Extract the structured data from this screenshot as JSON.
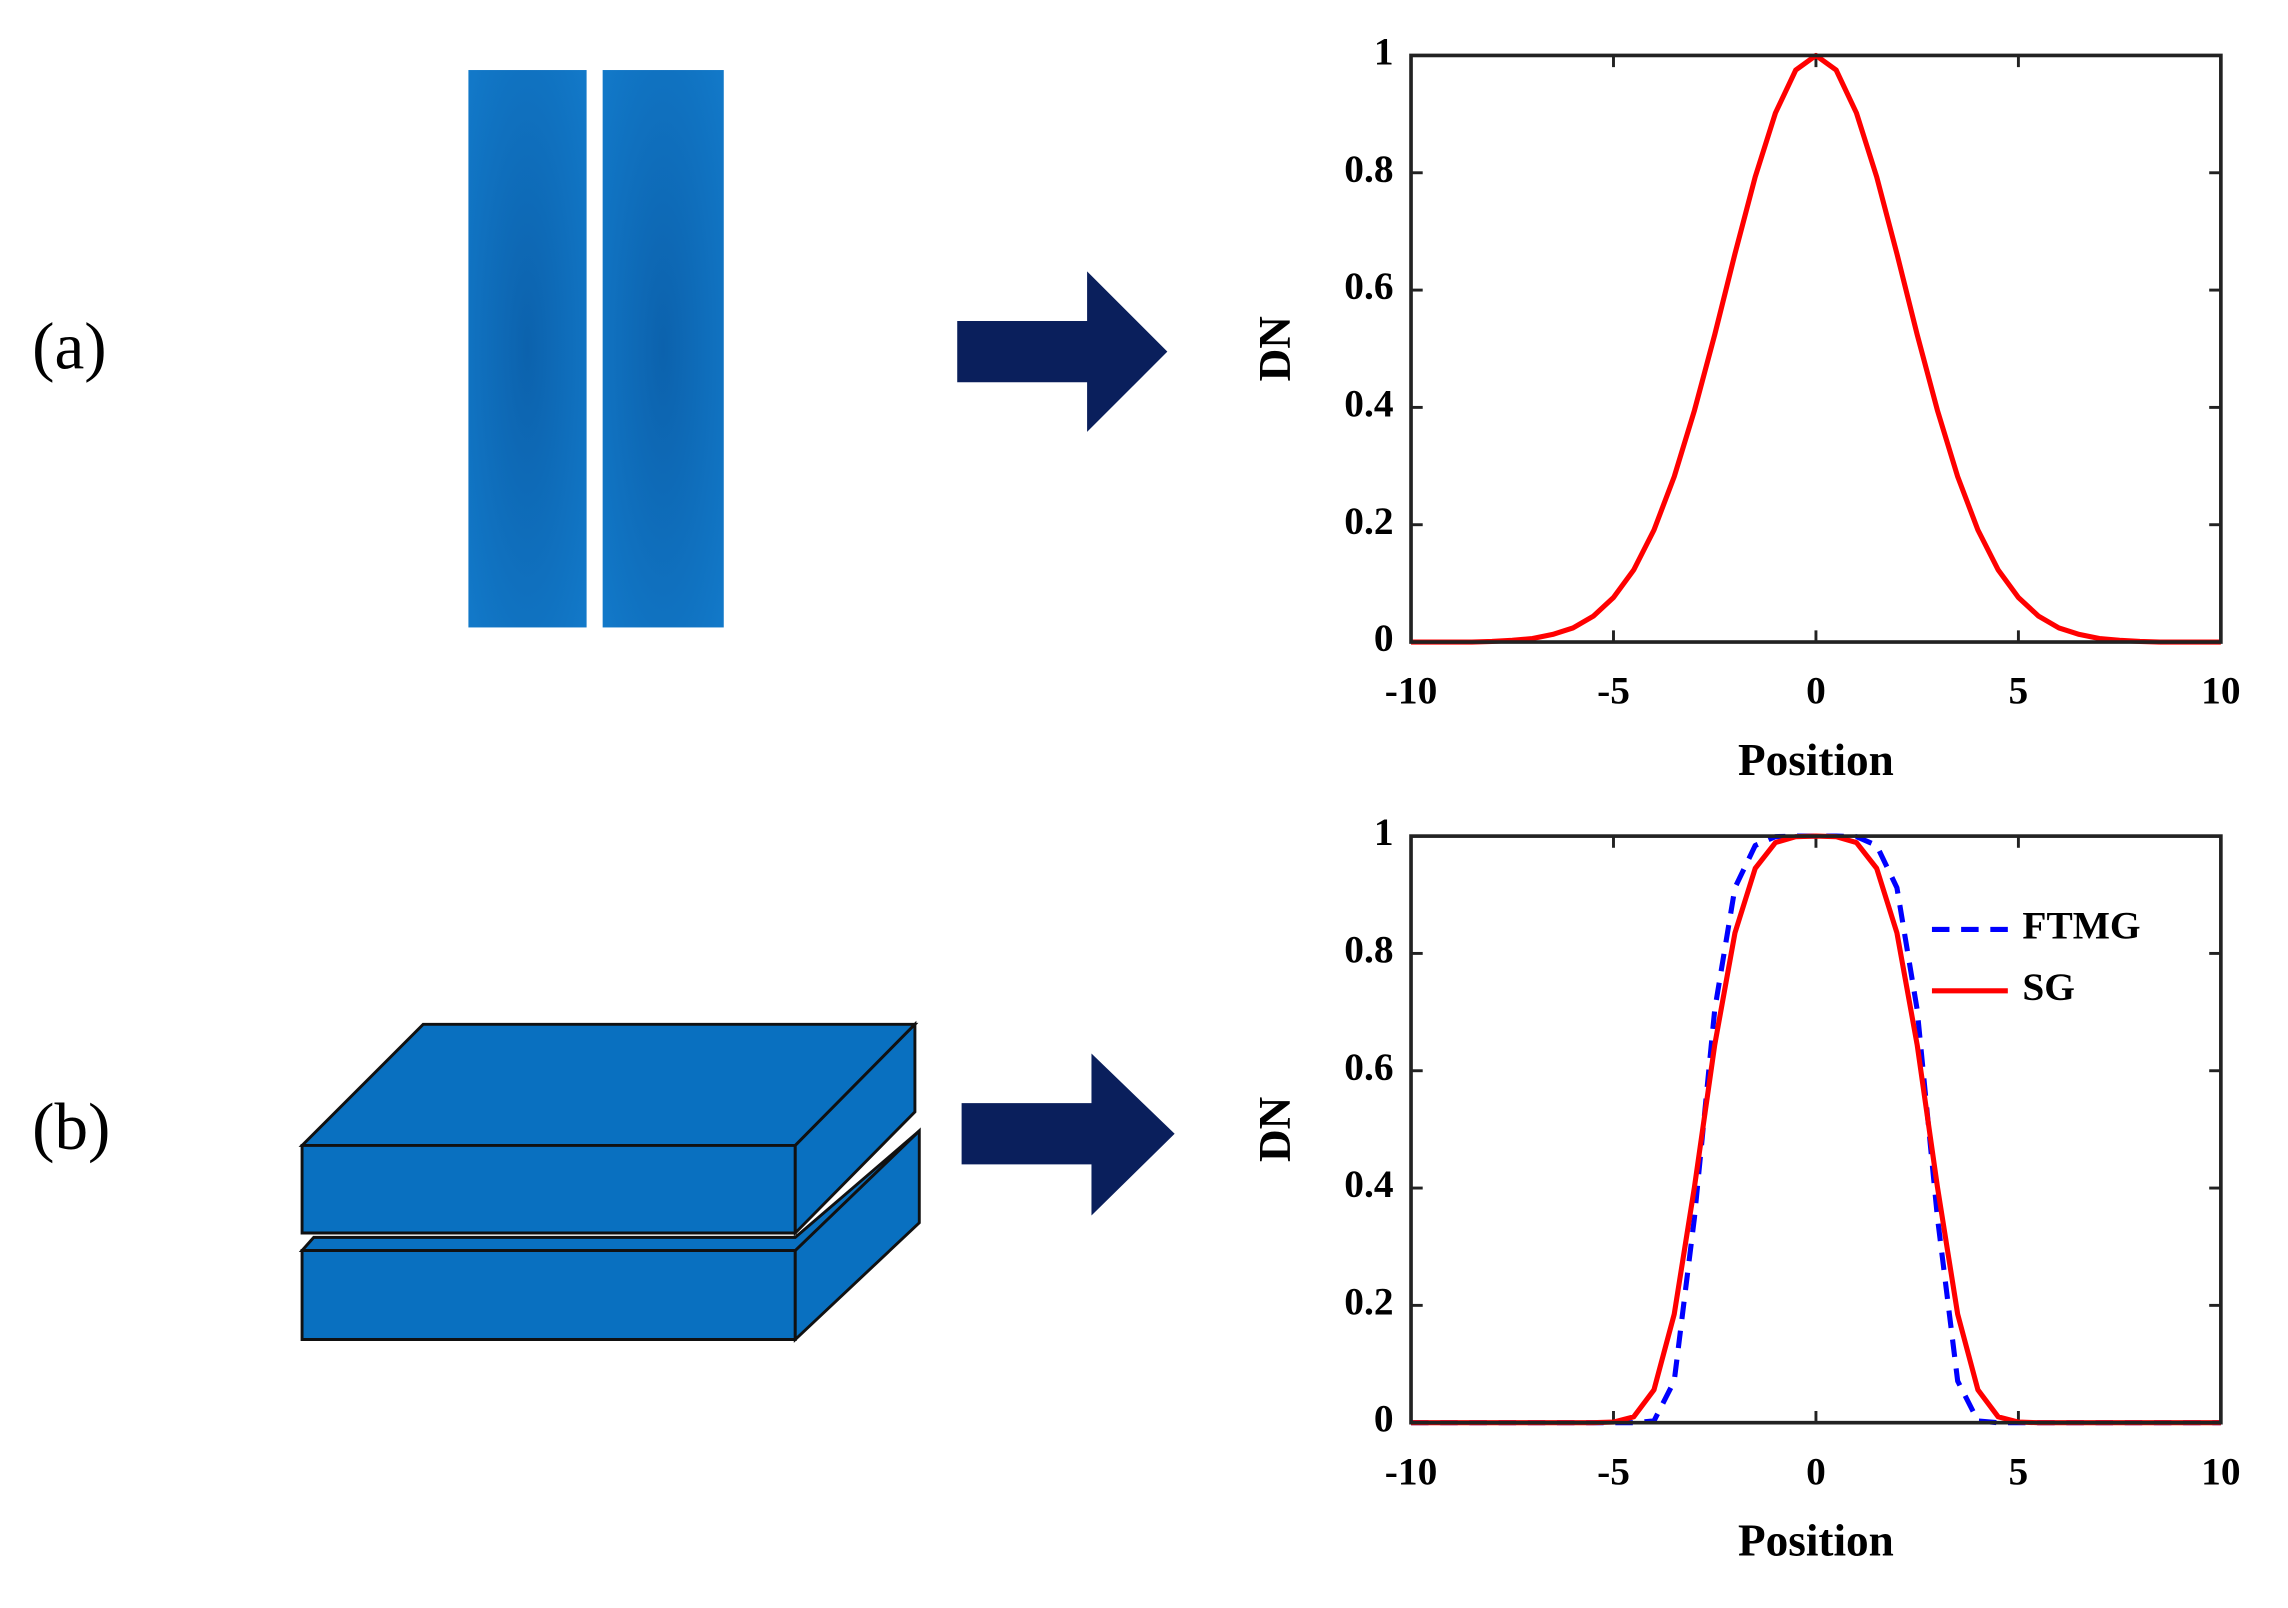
{
  "panel_labels": [
    "(a)",
    "(b)"
  ],
  "chart_data": [
    {
      "type": "line",
      "xlabel": "Position",
      "ylabel": "DN",
      "x": [
        -10,
        -9.5,
        -9,
        -8.5,
        -8,
        -7.5,
        -7,
        -6.5,
        -6,
        -5.5,
        -5,
        -4.5,
        -4,
        -3.5,
        -3,
        -2.5,
        -2,
        -1.5,
        -1,
        -0.5,
        0,
        0.5,
        1,
        1.5,
        2,
        2.5,
        3,
        3.5,
        4,
        4.5,
        5,
        5.5,
        6,
        6.5,
        7,
        7.5,
        8,
        8.5,
        9,
        9.5,
        10
      ],
      "series": [
        {
          "color": "#ff0000",
          "style": "solid",
          "values": [
            0,
            0,
            0,
            0,
            0.001,
            0.003,
            0.006,
            0.013,
            0.024,
            0.044,
            0.076,
            0.123,
            0.191,
            0.282,
            0.395,
            0.524,
            0.662,
            0.793,
            0.902,
            0.975,
            1,
            0.975,
            0.902,
            0.793,
            0.662,
            0.524,
            0.395,
            0.282,
            0.191,
            0.123,
            0.076,
            0.044,
            0.024,
            0.013,
            0.006,
            0.003,
            0.001,
            0,
            0,
            0,
            0
          ]
        }
      ],
      "xlim": [
        -10,
        10
      ],
      "xticks": [
        -10,
        -5,
        0,
        5,
        10
      ],
      "ylim": [
        0,
        1
      ],
      "yticks": [
        0,
        0.2,
        0.4,
        0.6,
        0.8,
        1
      ],
      "grid": false
    },
    {
      "type": "line",
      "xlabel": "Position",
      "ylabel": "DN",
      "x": [
        -10,
        -9.5,
        -9,
        -8.5,
        -8,
        -7.5,
        -7,
        -6.5,
        -6,
        -5.5,
        -5,
        -4.5,
        -4,
        -3.5,
        -3,
        -2.5,
        -2,
        -1.5,
        -1,
        -0.5,
        0,
        0.5,
        1,
        1.5,
        2,
        2.5,
        3,
        3.5,
        4,
        4.5,
        5,
        5.5,
        6,
        6.5,
        7,
        7.5,
        8,
        8.5,
        9,
        9.5,
        10
      ],
      "series": [
        {
          "name": "FTMG",
          "color": "#0000ff",
          "style": "dashed",
          "values": [
            0,
            0,
            0,
            0,
            0,
            0,
            0,
            0,
            0,
            0,
            0,
            0,
            0.003,
            0.071,
            0.35,
            0.704,
            0.912,
            0.984,
            0.999,
            1,
            1,
            1,
            0.999,
            0.984,
            0.912,
            0.704,
            0.35,
            0.071,
            0.003,
            0,
            0,
            0,
            0,
            0,
            0,
            0,
            0,
            0,
            0,
            0,
            0
          ]
        },
        {
          "name": "SG",
          "color": "#ff0000",
          "style": "solid",
          "values": [
            0,
            0,
            0,
            0,
            0,
            0,
            0,
            0,
            0,
            0,
            0.001,
            0.01,
            0.056,
            0.185,
            0.402,
            0.644,
            0.835,
            0.945,
            0.989,
            0.999,
            1,
            0.999,
            0.989,
            0.945,
            0.835,
            0.644,
            0.402,
            0.185,
            0.056,
            0.01,
            0.001,
            0,
            0,
            0,
            0,
            0,
            0,
            0,
            0,
            0,
            0
          ]
        }
      ],
      "xlim": [
        -10,
        10
      ],
      "xticks": [
        -10,
        -5,
        0,
        5,
        10
      ],
      "ylim": [
        0,
        1
      ],
      "yticks": [
        0,
        0.2,
        0.4,
        0.6,
        0.8,
        1
      ],
      "grid": false,
      "legend": "upper right"
    }
  ]
}
